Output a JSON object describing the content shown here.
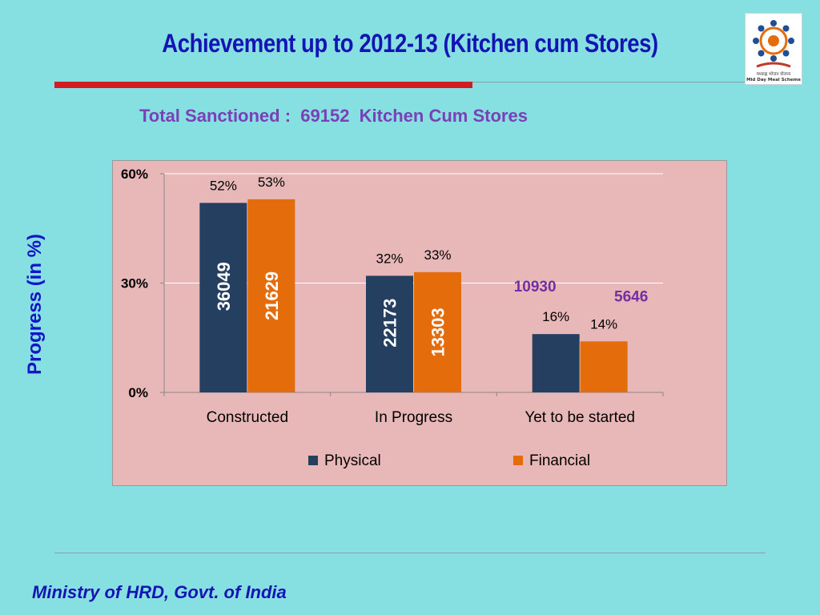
{
  "slide": {
    "title": "Achievement up to 2012-13 (Kitchen cum Stores)",
    "subtitle": "Total Sanctioned :  69152  Kitchen Cum Stores",
    "ylabel": "Progress (in %)",
    "footer": "Ministry of HRD, Govt. of India",
    "logo_caption_hindi": "मध्याह्न भोजन योजना",
    "logo_caption": "Mid Day Meal Scheme"
  },
  "colors": {
    "physical": "#243f60",
    "financial": "#e46c0a",
    "count_label_outside": "#7030a0"
  },
  "chart_data": {
    "type": "bar",
    "categories": [
      "Constructed",
      "In Progress",
      "Yet to be started"
    ],
    "ylim": [
      0,
      60
    ],
    "yticks": [
      0,
      30,
      60
    ],
    "ytick_labels": [
      "0%",
      "30%",
      "60%"
    ],
    "grid": true,
    "legend_position": "bottom",
    "series": [
      {
        "name": "Physical",
        "values": [
          52,
          32,
          16
        ],
        "value_labels": [
          "52%",
          "32%",
          "16%"
        ],
        "count_labels": [
          "36049",
          "22173",
          "10930"
        ]
      },
      {
        "name": "Financial",
        "values": [
          53,
          33,
          14
        ],
        "value_labels": [
          "53%",
          "33%",
          "14%"
        ],
        "count_labels": [
          "21629",
          "13303",
          "5646"
        ]
      }
    ]
  }
}
